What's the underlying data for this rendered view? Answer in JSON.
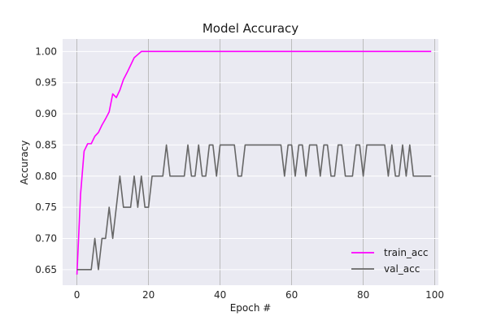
{
  "chart_data": {
    "type": "line",
    "title": "Model Accuracy",
    "xlabel": "Epoch #",
    "ylabel": "Accuracy",
    "xlim": [
      -4,
      101
    ],
    "ylim": [
      0.625,
      1.02
    ],
    "xticks": [
      0,
      20,
      40,
      60,
      80,
      100
    ],
    "yticks": [
      0.65,
      0.7,
      0.75,
      0.8,
      0.85,
      0.9,
      0.95,
      1.0
    ],
    "grid": true,
    "legend_position": "lower-right",
    "series": [
      {
        "name": "train_acc",
        "color": "#ff00ff",
        "values": [
          0.642,
          0.77,
          0.84,
          0.852,
          0.852,
          0.864,
          0.87,
          0.882,
          0.892,
          0.903,
          0.932,
          0.926,
          0.938,
          0.955,
          0.966,
          0.978,
          0.99,
          0.995,
          1.0,
          1.0,
          1.0,
          1.0,
          1.0,
          1.0,
          1.0,
          1.0,
          1.0,
          1.0,
          1.0,
          1.0,
          1.0,
          1.0,
          1.0,
          1.0,
          1.0,
          1.0,
          1.0,
          1.0,
          1.0,
          1.0,
          1.0,
          1.0,
          1.0,
          1.0,
          1.0,
          1.0,
          1.0,
          1.0,
          1.0,
          1.0,
          1.0,
          1.0,
          1.0,
          1.0,
          1.0,
          1.0,
          1.0,
          1.0,
          1.0,
          1.0,
          1.0,
          1.0,
          1.0,
          1.0,
          1.0,
          1.0,
          1.0,
          1.0,
          1.0,
          1.0,
          1.0,
          1.0,
          1.0,
          1.0,
          1.0,
          1.0,
          1.0,
          1.0,
          1.0,
          1.0,
          1.0,
          1.0,
          1.0,
          1.0,
          1.0,
          1.0,
          1.0,
          1.0,
          1.0,
          1.0,
          1.0,
          1.0,
          1.0,
          1.0,
          1.0,
          1.0,
          1.0,
          1.0,
          1.0,
          1.0
        ]
      },
      {
        "name": "val_acc",
        "color": "#666666",
        "values": [
          0.65,
          0.65,
          0.65,
          0.65,
          0.65,
          0.7,
          0.65,
          0.7,
          0.7,
          0.75,
          0.7,
          0.75,
          0.8,
          0.75,
          0.75,
          0.75,
          0.8,
          0.75,
          0.8,
          0.75,
          0.75,
          0.8,
          0.8,
          0.8,
          0.8,
          0.85,
          0.8,
          0.8,
          0.8,
          0.8,
          0.8,
          0.85,
          0.8,
          0.8,
          0.85,
          0.8,
          0.8,
          0.85,
          0.85,
          0.8,
          0.85,
          0.85,
          0.85,
          0.85,
          0.85,
          0.8,
          0.8,
          0.85,
          0.85,
          0.85,
          0.85,
          0.85,
          0.85,
          0.85,
          0.85,
          0.85,
          0.85,
          0.85,
          0.8,
          0.85,
          0.85,
          0.8,
          0.85,
          0.85,
          0.8,
          0.85,
          0.85,
          0.85,
          0.8,
          0.85,
          0.85,
          0.8,
          0.8,
          0.85,
          0.85,
          0.8,
          0.8,
          0.8,
          0.85,
          0.85,
          0.8,
          0.85,
          0.85,
          0.85,
          0.85,
          0.85,
          0.85,
          0.8,
          0.85,
          0.8,
          0.8,
          0.85,
          0.8,
          0.85,
          0.8,
          0.8,
          0.8,
          0.8,
          0.8,
          0.8
        ]
      }
    ]
  }
}
